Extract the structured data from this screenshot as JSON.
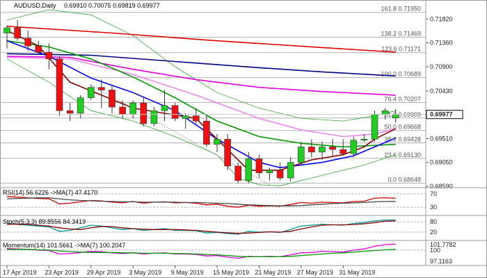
{
  "chart_data": {
    "type": "candlestick",
    "symbol": "AUDUSD,Daily",
    "header_values": "0.69910 0.70075 0.69819 0.69977",
    "current_price": 0.69977,
    "current_price_label": "0.69977",
    "ylim": [
      0.6859,
      0.72
    ],
    "y_ticks": [
      0.7182,
      0.7136,
      0.709,
      0.7043,
      0.6997,
      0.6951,
      0.6905,
      0.6859
    ],
    "y_tick_labels": [
      "0.71820",
      "0.71360",
      "0.70900",
      "0.70430",
      "0.69970",
      "0.69510",
      "0.69050",
      "0.68590"
    ],
    "x_labels": [
      "17 Apr 2019",
      "23 Apr 2019",
      "29 Apr 2019",
      "3 May 2019",
      "9 May 2019",
      "15 May 2019",
      "21 May 2019",
      "27 May 2019",
      "31 May 2019"
    ],
    "x_label_indices": [
      0,
      4,
      8,
      12,
      16,
      20,
      24,
      28,
      32
    ],
    "fibonacci": [
      {
        "label": "161.8 0.71950",
        "value": 0.7195
      },
      {
        "label": "138.2 0.71469",
        "value": 0.71469
      },
      {
        "label": "123.6 0.71171",
        "value": 0.71171
      },
      {
        "label": "100.0 0.70689",
        "value": 0.70689
      },
      {
        "label": "76.4 0.70207",
        "value": 0.70207
      },
      {
        "label": "61.8 0.69909",
        "value": 0.69909
      },
      {
        "label": "50.0 0.69668",
        "value": 0.69668
      },
      {
        "label": "38.2 0.69428",
        "value": 0.69428
      },
      {
        "label": "23.6 0.69130",
        "value": 0.6913
      },
      {
        "label": "0.0 0.68648",
        "value": 0.68648
      }
    ],
    "candles": [
      {
        "o": 0.7155,
        "h": 0.717,
        "l": 0.7125,
        "c": 0.7165
      },
      {
        "o": 0.7165,
        "h": 0.718,
        "l": 0.714,
        "c": 0.7145
      },
      {
        "o": 0.7145,
        "h": 0.716,
        "l": 0.712,
        "c": 0.713
      },
      {
        "o": 0.713,
        "h": 0.714,
        "l": 0.7115,
        "c": 0.7118
      },
      {
        "o": 0.7118,
        "h": 0.7135,
        "l": 0.7085,
        "c": 0.7105
      },
      {
        "o": 0.7105,
        "h": 0.711,
        "l": 0.6995,
        "c": 0.7005
      },
      {
        "o": 0.7005,
        "h": 0.702,
        "l": 0.6985,
        "c": 0.7
      },
      {
        "o": 0.7,
        "h": 0.7035,
        "l": 0.699,
        "c": 0.703
      },
      {
        "o": 0.703,
        "h": 0.7055,
        "l": 0.7025,
        "c": 0.705
      },
      {
        "o": 0.705,
        "h": 0.7065,
        "l": 0.701,
        "c": 0.7045
      },
      {
        "o": 0.7045,
        "h": 0.7055,
        "l": 0.7,
        "c": 0.7012
      },
      {
        "o": 0.7012,
        "h": 0.7025,
        "l": 0.699,
        "c": 0.6998
      },
      {
        "o": 0.6998,
        "h": 0.7025,
        "l": 0.699,
        "c": 0.702
      },
      {
        "o": 0.702,
        "h": 0.703,
        "l": 0.6975,
        "c": 0.698
      },
      {
        "o": 0.698,
        "h": 0.7012,
        "l": 0.6975,
        "c": 0.7005
      },
      {
        "o": 0.7005,
        "h": 0.7045,
        "l": 0.6985,
        "c": 0.7015
      },
      {
        "o": 0.7015,
        "h": 0.702,
        "l": 0.6985,
        "c": 0.699
      },
      {
        "o": 0.699,
        "h": 0.7,
        "l": 0.697,
        "c": 0.6995
      },
      {
        "o": 0.6995,
        "h": 0.701,
        "l": 0.698,
        "c": 0.6985
      },
      {
        "o": 0.6985,
        "h": 0.6995,
        "l": 0.6935,
        "c": 0.694
      },
      {
        "o": 0.694,
        "h": 0.696,
        "l": 0.6925,
        "c": 0.695
      },
      {
        "o": 0.695,
        "h": 0.696,
        "l": 0.689,
        "c": 0.6898
      },
      {
        "o": 0.6898,
        "h": 0.6905,
        "l": 0.6865,
        "c": 0.687
      },
      {
        "o": 0.687,
        "h": 0.6925,
        "l": 0.6865,
        "c": 0.6912
      },
      {
        "o": 0.6912,
        "h": 0.692,
        "l": 0.6875,
        "c": 0.6885
      },
      {
        "o": 0.6885,
        "h": 0.6895,
        "l": 0.687,
        "c": 0.689
      },
      {
        "o": 0.689,
        "h": 0.6905,
        "l": 0.687,
        "c": 0.6875
      },
      {
        "o": 0.6875,
        "h": 0.6915,
        "l": 0.6868,
        "c": 0.6905
      },
      {
        "o": 0.6905,
        "h": 0.6945,
        "l": 0.69,
        "c": 0.6935
      },
      {
        "o": 0.6935,
        "h": 0.695,
        "l": 0.6915,
        "c": 0.6925
      },
      {
        "o": 0.6925,
        "h": 0.6945,
        "l": 0.691,
        "c": 0.6935
      },
      {
        "o": 0.6935,
        "h": 0.695,
        "l": 0.6918,
        "c": 0.693
      },
      {
        "o": 0.693,
        "h": 0.695,
        "l": 0.6918,
        "c": 0.6922
      },
      {
        "o": 0.6922,
        "h": 0.6955,
        "l": 0.6915,
        "c": 0.6948
      },
      {
        "o": 0.6948,
        "h": 0.696,
        "l": 0.6945,
        "c": 0.695
      },
      {
        "o": 0.695,
        "h": 0.7005,
        "l": 0.6945,
        "c": 0.6998
      },
      {
        "o": 0.6998,
        "h": 0.701,
        "l": 0.6988,
        "c": 0.7005
      },
      {
        "o": 0.6991,
        "h": 0.70075,
        "l": 0.69819,
        "c": 0.69977
      }
    ],
    "moving_averages": [
      {
        "name": "long-ma-red",
        "color": "#e00000",
        "points": [
          [
            0,
            0.7168
          ],
          [
            10,
            0.7155
          ],
          [
            20,
            0.714
          ],
          [
            30,
            0.7127
          ],
          [
            37,
            0.7118
          ]
        ]
      },
      {
        "name": "long-ma-navy",
        "color": "#000080",
        "points": [
          [
            0,
            0.7115
          ],
          [
            8,
            0.7112
          ],
          [
            16,
            0.71
          ],
          [
            24,
            0.7088
          ],
          [
            30,
            0.708
          ],
          [
            37,
            0.7072
          ]
        ]
      },
      {
        "name": "mid-ma-magenta",
        "color": "#dd00dd",
        "points": [
          [
            0,
            0.711
          ],
          [
            6,
            0.7108
          ],
          [
            12,
            0.7085
          ],
          [
            18,
            0.7065
          ],
          [
            24,
            0.705
          ],
          [
            30,
            0.7042
          ],
          [
            37,
            0.7035
          ]
        ]
      },
      {
        "name": "ma-pink",
        "color": "#ee88ee",
        "points": [
          [
            0,
            0.7108
          ],
          [
            6,
            0.7105
          ],
          [
            12,
            0.7075
          ],
          [
            18,
            0.7035
          ],
          [
            24,
            0.699
          ],
          [
            28,
            0.6968
          ],
          [
            32,
            0.6955
          ],
          [
            35,
            0.696
          ],
          [
            37,
            0.697
          ]
        ]
      },
      {
        "name": "ma-green",
        "color": "#009900",
        "points": [
          [
            0,
            0.714
          ],
          [
            4,
            0.7128
          ],
          [
            8,
            0.7105
          ],
          [
            12,
            0.707
          ],
          [
            16,
            0.703
          ],
          [
            20,
            0.6985
          ],
          [
            24,
            0.6955
          ],
          [
            28,
            0.6942
          ],
          [
            32,
            0.6935
          ],
          [
            35,
            0.6938
          ],
          [
            37,
            0.694
          ]
        ]
      },
      {
        "name": "ma-blue",
        "color": "#0000ee",
        "points": [
          [
            0,
            0.714
          ],
          [
            4,
            0.711
          ],
          [
            8,
            0.7068
          ],
          [
            12,
            0.704
          ],
          [
            16,
            0.7005
          ],
          [
            20,
            0.695
          ],
          [
            24,
            0.6905
          ],
          [
            26,
            0.6895
          ],
          [
            30,
            0.6905
          ],
          [
            33,
            0.6918
          ],
          [
            35,
            0.6935
          ],
          [
            37,
            0.6952
          ]
        ]
      },
      {
        "name": "ma-darkred",
        "color": "#880000",
        "points": [
          [
            0,
            0.716
          ],
          [
            3,
            0.713
          ],
          [
            6,
            0.706
          ],
          [
            9,
            0.7035
          ],
          [
            12,
            0.701
          ],
          [
            15,
            0.7
          ],
          [
            18,
            0.699
          ],
          [
            21,
            0.693
          ],
          [
            23,
            0.689
          ],
          [
            26,
            0.689
          ],
          [
            29,
            0.691
          ],
          [
            32,
            0.692
          ],
          [
            34,
            0.6935
          ],
          [
            35,
            0.695
          ],
          [
            37,
            0.697
          ]
        ]
      }
    ],
    "bollinger": {
      "color": "#33aa33",
      "upper": [
        [
          0,
          0.718
        ],
        [
          4,
          0.72
        ],
        [
          8,
          0.719
        ],
        [
          12,
          0.715
        ],
        [
          16,
          0.709
        ],
        [
          20,
          0.704
        ],
        [
          24,
          0.701
        ],
        [
          28,
          0.699
        ],
        [
          32,
          0.6985
        ],
        [
          35,
          0.6995
        ],
        [
          37,
          0.7005
        ]
      ],
      "lower": [
        [
          0,
          0.7105
        ],
        [
          4,
          0.706
        ],
        [
          8,
          0.7005
        ],
        [
          12,
          0.6985
        ],
        [
          16,
          0.6955
        ],
        [
          20,
          0.692
        ],
        [
          22,
          0.6875
        ],
        [
          24,
          0.6862
        ],
        [
          26,
          0.686
        ],
        [
          30,
          0.688
        ],
        [
          34,
          0.69
        ],
        [
          37,
          0.692
        ]
      ]
    },
    "dotted_trendline": {
      "color": "#999999",
      "points": [
        [
          8,
          0.7055
        ],
        [
          25,
          0.6862
        ]
      ]
    },
    "indicators": [
      {
        "label": "RSI(14) 56.6226 ->MA(7) 47.4170",
        "ylim": [
          20,
          80
        ],
        "levels": [
          70,
          30
        ],
        "level_labels": [
          "70",
          "30"
        ],
        "series": [
          {
            "name": "rsi",
            "color": "#cc0000",
            "values": [
              62,
              60,
              58,
              56,
              55,
              40,
              42,
              46,
              50,
              49,
              45,
              43,
              47,
              42,
              45,
              46,
              43,
              44,
              42,
              37,
              39,
              33,
              30,
              36,
              33,
              34,
              33,
              38,
              44,
              42,
              45,
              44,
              43,
              47,
              48,
              57,
              58,
              56.6
            ]
          },
          {
            "name": "rsi-ma",
            "color": "#444444",
            "values": [
              55,
              56,
              57,
              58,
              58,
              55,
              52,
              50,
              49,
              48,
              47,
              46,
              46,
              45,
              45,
              45,
              45,
              44,
              44,
              43,
              42,
              41,
              39,
              37,
              36,
              35,
              34,
              34,
              35,
              37,
              39,
              41,
              42,
              43,
              44,
              46,
              47,
              47.4
            ]
          }
        ]
      },
      {
        "label": "Stoch(5,3,3) 89.8556 84.3419",
        "ylim": [
          0,
          100
        ],
        "levels": [
          80,
          20
        ],
        "level_labels": [
          "80",
          "20"
        ],
        "series": [
          {
            "name": "stoch-k",
            "color": "#009999",
            "values": [
              70,
              65,
              60,
              55,
              50,
              25,
              30,
              45,
              60,
              55,
              45,
              35,
              40,
              30,
              35,
              40,
              30,
              30,
              28,
              15,
              18,
              12,
              8,
              25,
              20,
              22,
              18,
              35,
              55,
              60,
              65,
              62,
              60,
              70,
              75,
              85,
              90,
              89.9
            ]
          },
          {
            "name": "stoch-d",
            "color": "#880000",
            "values": [
              65,
              66,
              65,
              60,
              55,
              45,
              38,
              35,
              45,
              53,
              52,
              45,
              40,
              37,
              35,
              35,
              35,
              33,
              30,
              25,
              20,
              16,
              13,
              15,
              18,
              22,
              20,
              25,
              38,
              50,
              60,
              62,
              62,
              64,
              68,
              75,
              83,
              84.3
            ]
          }
        ]
      },
      {
        "label": "Momentum(14) 101.5661 ->MA(7) 100.2047",
        "ylim": [
          97.1163,
          101.7782
        ],
        "levels": [
          100
        ],
        "level_labels": [
          "100"
        ],
        "axis_labels": [
          "101.7782",
          "97.1163"
        ],
        "series": [
          {
            "name": "momentum",
            "color": "#dd00dd",
            "values": [
              100.4,
              100.3,
              100.2,
              100.0,
              99.9,
              99.0,
              99.1,
              99.4,
              99.7,
              99.6,
              99.3,
              99.1,
              99.3,
              99.0,
              99.2,
              99.3,
              99.0,
              99.0,
              98.9,
              98.5,
              98.6,
              98.2,
              97.9,
              98.4,
              98.3,
              98.4,
              98.3,
              98.8,
              99.3,
              99.4,
              99.7,
              99.6,
              99.5,
              100.0,
              100.3,
              101.0,
              101.4,
              101.57
            ]
          },
          {
            "name": "momentum-ma",
            "color": "#009900",
            "values": [
              100.2,
              100.2,
              100.2,
              100.1,
              100.0,
              99.8,
              99.6,
              99.5,
              99.4,
              99.4,
              99.4,
              99.3,
              99.3,
              99.2,
              99.2,
              99.2,
              99.1,
              99.1,
              99.0,
              98.9,
              98.8,
              98.6,
              98.4,
              98.3,
              98.3,
              98.3,
              98.3,
              98.4,
              98.6,
              98.8,
              99.0,
              99.2,
              99.3,
              99.5,
              99.7,
              99.9,
              100.1,
              100.2
            ]
          }
        ]
      }
    ]
  }
}
